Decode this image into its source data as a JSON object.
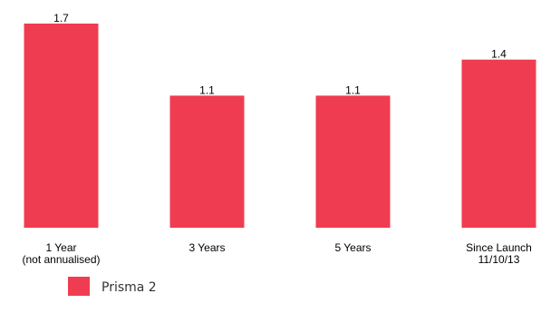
{
  "chart_data": {
    "type": "bar",
    "categories": [
      [
        "1 Year",
        "(not annualised)"
      ],
      [
        "3 Years"
      ],
      [
        "5 Years"
      ],
      [
        "Since Launch",
        "11/10/13"
      ]
    ],
    "series": [
      {
        "name": "Prisma 2",
        "values": [
          1.7,
          1.1,
          1.1,
          1.4
        ],
        "labels": [
          "1.7",
          "1.1",
          "1.1",
          "1.4"
        ],
        "color": "#f03c50"
      }
    ],
    "ylim": [
      0,
      1.7
    ],
    "grid": false,
    "legend": "bottom-left"
  }
}
